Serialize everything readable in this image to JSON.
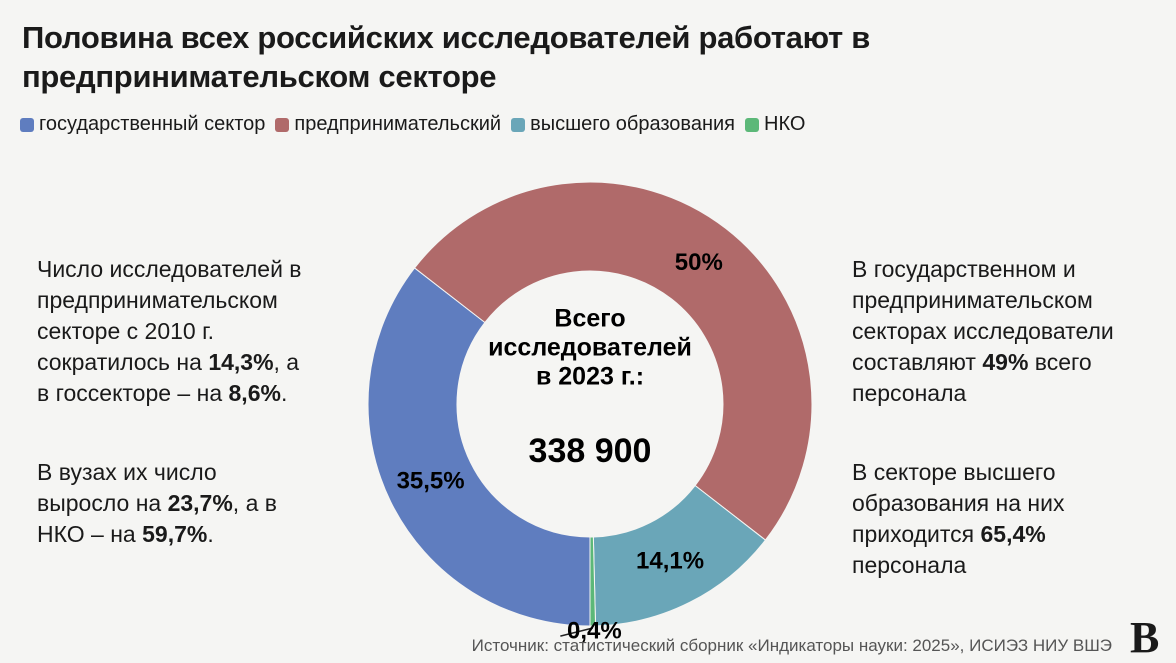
{
  "chart_data": {
    "type": "donut",
    "title": [
      "Половина всех российских исследователей работают в",
      "предпринимательском секторе"
    ],
    "categories": [
      "государственный сектор",
      "предпринимательский",
      "высшего образования",
      "НКО"
    ],
    "values": [
      35.5,
      50,
      14.1,
      0.4
    ],
    "value_labels": [
      "35,5%",
      "50%",
      "14,1%",
      "0,4%"
    ],
    "colors": [
      "#5f7dbf",
      "#b06a6a",
      "#6aa6b8",
      "#5cb878"
    ],
    "start_angle": 180,
    "center_label": [
      "Всего",
      "исследователей",
      "в 2023 г.:"
    ],
    "center_total": "338 900",
    "annotations_left": [
      [
        [
          {
            "text": "Число исследователей в"
          }
        ],
        [
          {
            "text": "предпринимательском"
          }
        ],
        [
          {
            "text": "секторе с 2010 г."
          }
        ],
        [
          {
            "text": "сократилось на "
          },
          {
            "text": "14,3%",
            "bold": true
          },
          {
            "text": ", а"
          }
        ],
        [
          {
            "text": "в госсекторе – на "
          },
          {
            "text": "8,6%",
            "bold": true
          },
          {
            "text": "."
          }
        ]
      ],
      [
        [
          {
            "text": "В вузах их число"
          }
        ],
        [
          {
            "text": "выросло на "
          },
          {
            "text": "23,7%",
            "bold": true
          },
          {
            "text": ", а в"
          }
        ],
        [
          {
            "text": "НКО – на "
          },
          {
            "text": "59,7%",
            "bold": true
          },
          {
            "text": "."
          }
        ]
      ]
    ],
    "annotations_right": [
      [
        [
          {
            "text": "В государственном и"
          }
        ],
        [
          {
            "text": "предпринимательском"
          }
        ],
        [
          {
            "text": "секторах исследователи"
          }
        ],
        [
          {
            "text": "составляют "
          },
          {
            "text": "49%",
            "bold": true
          },
          {
            "text": " всего"
          }
        ],
        [
          {
            "text": "персонала"
          }
        ]
      ],
      [
        [
          {
            "text": "В секторе высшего"
          }
        ],
        [
          {
            "text": "образования на них"
          }
        ],
        [
          {
            "text": "приходится "
          },
          {
            "text": "65,4%",
            "bold": true
          }
        ],
        [
          {
            "text": "персонала"
          }
        ]
      ]
    ],
    "source": "Источник: статистический сборник «Индикаторы науки: 2025», ИСИЭЗ НИУ ВШЭ",
    "logo": "В"
  }
}
